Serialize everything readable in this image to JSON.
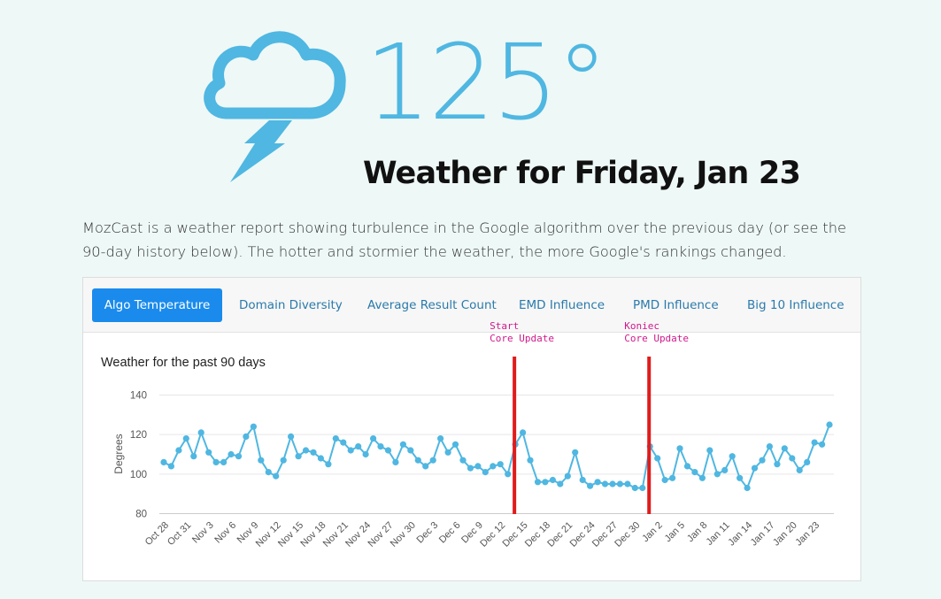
{
  "header": {
    "temperature": "125°",
    "headline": "Weather for Friday, Jan 23",
    "icon": "storm-cloud-lightning-icon"
  },
  "intro": "MozCast is a weather report showing turbulence in the Google algorithm over the previous day (or see the 90-day history below). The hotter and stormier the weather, the more Google's rankings changed.",
  "tabs": [
    {
      "label": "Algo Temperature",
      "active": true
    },
    {
      "label": "Domain Diversity",
      "active": false
    },
    {
      "label": "Average Result Count",
      "active": false
    },
    {
      "label": "EMD Influence",
      "active": false
    },
    {
      "label": "PMD Influence",
      "active": false
    },
    {
      "label": "Big 10 Influence",
      "active": false
    }
  ],
  "colors": {
    "accent": "#4fb7e1",
    "tab_active": "#1a8bec",
    "annotation_text": "#d0198c",
    "annotation_line": "#e01b1b"
  },
  "chart_data": {
    "type": "line",
    "title": "Weather for the past 90 days",
    "ylabel": "Degrees",
    "xlabel": "",
    "ylim": [
      80,
      145
    ],
    "yticks": [
      80,
      100,
      120,
      140
    ],
    "grid": true,
    "series": [
      {
        "values": [
          106,
          104,
          112,
          118,
          109,
          121,
          111,
          106,
          106,
          110,
          109,
          119,
          124,
          107,
          101,
          99,
          107,
          119,
          109,
          112,
          111,
          108,
          105,
          118,
          116,
          112,
          114,
          110,
          118,
          114,
          112,
          106,
          115,
          112,
          107,
          104,
          107,
          118,
          111,
          115,
          107,
          103,
          104,
          101,
          104,
          105,
          100,
          115,
          121,
          107,
          96,
          96,
          97,
          95,
          99,
          111,
          97,
          94,
          96,
          95,
          95,
          95,
          95,
          93,
          93,
          114,
          108,
          97,
          98,
          113,
          104,
          101,
          98,
          112,
          100,
          102,
          109,
          98,
          93,
          103,
          107,
          114,
          105,
          113,
          108,
          102,
          106,
          116,
          115,
          125
        ]
      }
    ],
    "x_ticks": [
      "Oct 28",
      "Oct 31",
      "Nov 3",
      "Nov 6",
      "Nov 9",
      "Nov 12",
      "Nov 15",
      "Nov 18",
      "Nov 21",
      "Nov 24",
      "Nov 27",
      "Nov 30",
      "Dec 3",
      "Dec 6",
      "Dec 9",
      "Dec 12",
      "Dec 15",
      "Dec 18",
      "Dec 21",
      "Dec 24",
      "Dec 27",
      "Dec 30",
      "Jan 2",
      "Jan 5",
      "Jan 8",
      "Jan 11",
      "Jan 14",
      "Jan 17",
      "Jan 20",
      "Jan 23"
    ],
    "annotations": [
      {
        "lines": [
          "Start",
          "Core Update"
        ],
        "day_index": 47
      },
      {
        "lines": [
          "Koniec",
          "Core Update"
        ],
        "day_index": 65
      }
    ]
  }
}
